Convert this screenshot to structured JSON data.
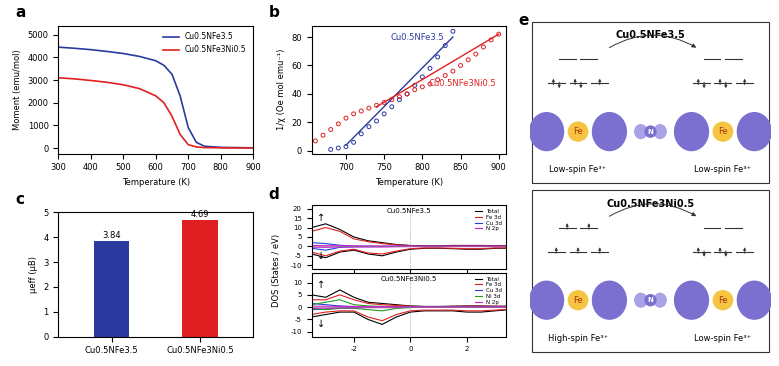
{
  "chart_data": [
    {
      "type": "line",
      "title": "a",
      "xlabel": "Temperature (K)",
      "ylabel": "Moment (emu/mol)",
      "x": [
        300,
        350,
        400,
        450,
        500,
        550,
        600,
        625,
        650,
        675,
        700,
        725,
        750,
        800,
        850,
        900
      ],
      "series": [
        {
          "name": "Cu0.5NFe3.5",
          "color": "#2b3a9e",
          "values": [
            4450,
            4400,
            4340,
            4260,
            4170,
            4040,
            3850,
            3650,
            3250,
            2300,
            900,
            250,
            80,
            30,
            20,
            10
          ]
        },
        {
          "name": "Cu0.5NFe3Ni0.5",
          "color": "#e02020",
          "values": [
            3100,
            3050,
            2980,
            2900,
            2790,
            2620,
            2300,
            2000,
            1400,
            600,
            150,
            50,
            20,
            10,
            5,
            5
          ]
        }
      ],
      "xlim": [
        300,
        900
      ],
      "xticks": [
        300,
        400,
        500,
        600,
        700,
        800,
        900
      ],
      "ylim": [
        -250,
        5400
      ],
      "yticks": [
        0,
        1000,
        2000,
        3000,
        4000,
        5000
      ],
      "legend": "upper right"
    },
    {
      "type": "scatter",
      "title": "b",
      "xlabel": "Temperature (K)",
      "ylabel": "1/χ (Oe mol emu⁻¹)",
      "series": [
        {
          "name": "Cu0.5NFe3.5",
          "color": "#2b3a9e",
          "marker": "circle",
          "x": [
            680,
            690,
            700,
            710,
            720,
            730,
            740,
            750,
            760,
            770,
            780,
            790,
            800,
            810,
            820,
            830,
            840
          ],
          "values": [
            1,
            2,
            3,
            6,
            12,
            17,
            21,
            26,
            31,
            36,
            40,
            46,
            52,
            58,
            66,
            74,
            84
          ],
          "fit_x": [
            700,
            840
          ],
          "fit_values": [
            4,
            80
          ]
        },
        {
          "name": "Cu0.5NFe3Ni0.5",
          "color": "#e02020",
          "marker": "circle",
          "x": [
            660,
            670,
            680,
            690,
            700,
            710,
            720,
            730,
            740,
            750,
            760,
            770,
            780,
            790,
            800,
            810,
            820,
            830,
            840,
            850,
            860,
            870,
            880,
            890,
            900
          ],
          "values": [
            7,
            11,
            15,
            19,
            23,
            26,
            28,
            30,
            32,
            34,
            36,
            38,
            40,
            43,
            45,
            47,
            50,
            53,
            56,
            60,
            64,
            68,
            73,
            78,
            82
          ],
          "fit_x": [
            740,
            900
          ],
          "fit_values": [
            31,
            82
          ]
        }
      ],
      "xlim": [
        655,
        910
      ],
      "xticks": [
        700,
        750,
        800,
        850,
        900
      ],
      "ylim": [
        -2,
        88
      ],
      "yticks": [
        0,
        20,
        40,
        60,
        80
      ]
    },
    {
      "type": "bar",
      "title": "c",
      "ylabel": "μeff (μB)",
      "categories": [
        "Cu0.5NFe3.5",
        "Cu0.5NFe3Ni0.5"
      ],
      "values": [
        3.84,
        4.69
      ],
      "colors": [
        "#2b3a9e",
        "#e02020"
      ],
      "ylim": [
        0,
        5
      ],
      "yticks": [
        0,
        1,
        2,
        3,
        4,
        5
      ],
      "data_labels": true
    },
    {
      "type": "line",
      "title": "d",
      "subtitle": "Cu0.5NFe3.5",
      "ylabel": "DOS (States / eV)",
      "spin_labels": [
        "↑",
        "↓"
      ],
      "tick_labels": "y",
      "legend": "upper right",
      "x": [
        -3.5,
        -3,
        -2.5,
        -2,
        -1.5,
        -1,
        -0.5,
        0,
        0.5,
        1,
        1.5,
        2,
        2.5,
        3,
        3.5
      ],
      "series": [
        {
          "name": "Total",
          "color": "#000000",
          "spin_up": [
            10,
            12,
            9,
            5,
            3,
            2,
            1,
            0.5,
            0.3,
            0.3,
            0.5,
            0.5,
            0.5,
            0.4,
            0.4
          ],
          "spin_down": [
            -4,
            -6,
            -3,
            -2,
            -4,
            -5,
            -3,
            -1.5,
            -1,
            -1,
            -1.2,
            -1.5,
            -1.5,
            -1,
            -1
          ]
        },
        {
          "name": "Fe 3d",
          "color": "#e02020",
          "spin_up": [
            8,
            10,
            8,
            4,
            2.5,
            1.5,
            0.8,
            0.4,
            0.2,
            0.2,
            0.3,
            0.3,
            0.3,
            0.3,
            0.3
          ],
          "spin_down": [
            -3,
            -5,
            -2.5,
            -1.5,
            -3.5,
            -4,
            -2.5,
            -1.2,
            -0.8,
            -0.8,
            -1,
            -1.2,
            -1.2,
            -0.8,
            -0.8
          ]
        },
        {
          "name": "Cu 3d",
          "color": "#2040e0",
          "spin_up": [
            2,
            1.5,
            0.6,
            0.2,
            0.1,
            0.1,
            0.05,
            0,
            0,
            0,
            0,
            0,
            0,
            0,
            0
          ],
          "spin_down": [
            -1,
            -2,
            -0.5,
            -0.2,
            -0.1,
            -0.1,
            0,
            0,
            0,
            0,
            0,
            0,
            0,
            0,
            0
          ]
        },
        {
          "name": "N 2p",
          "color": "#d020d0",
          "spin_up": [
            0.5,
            0.4,
            0.3,
            0.3,
            0.2,
            0.2,
            0.2,
            0.1,
            0.1,
            0.1,
            0.1,
            0.1,
            0.1,
            0.1,
            0.1
          ],
          "spin_down": [
            -0.4,
            -0.5,
            -0.3,
            -0.3,
            -0.3,
            -0.3,
            -0.2,
            -0.1,
            -0.1,
            -0.1,
            -0.1,
            -0.1,
            -0.1,
            -0.1,
            -0.1
          ]
        }
      ],
      "xlim": [
        -3.5,
        3.4
      ],
      "xticks": [
        -2,
        0,
        2
      ],
      "ylim": [
        -12,
        22
      ],
      "yticks": [
        -10,
        -5,
        0,
        5,
        10,
        15,
        20
      ]
    },
    {
      "type": "line",
      "subtitle": "Cu0.5NFe3Ni0.5",
      "spin_labels": [
        "↑",
        "↓"
      ],
      "legend": "upper right",
      "x": [
        -3.5,
        -3,
        -2.5,
        -2,
        -1.5,
        -1,
        -0.5,
        0,
        0.5,
        1,
        1.5,
        2,
        2.5,
        3,
        3.5
      ],
      "series": [
        {
          "name": "Total",
          "color": "#000000",
          "spin_up": [
            5,
            4,
            7,
            4,
            2,
            1.5,
            1,
            0.5,
            0.3,
            0.3,
            0.4,
            0.5,
            0.5,
            0.4,
            0.4
          ],
          "spin_down": [
            -4,
            -3,
            -2,
            -2,
            -5,
            -7,
            -4,
            -2,
            -1.5,
            -1.5,
            -1.5,
            -2,
            -2,
            -1.5,
            -1
          ]
        },
        {
          "name": "Fe 3d",
          "color": "#e02020",
          "spin_up": [
            3,
            3,
            5,
            3,
            1.5,
            1,
            0.7,
            0.4,
            0.2,
            0.2,
            0.3,
            0.4,
            0.4,
            0.3,
            0.3
          ],
          "spin_down": [
            -3,
            -2,
            -1.5,
            -1.5,
            -4,
            -5.5,
            -3,
            -1.5,
            -1.2,
            -1.2,
            -1.2,
            -1.5,
            -1.5,
            -1.2,
            -0.8
          ]
        },
        {
          "name": "Cu 3d",
          "color": "#2040e0",
          "spin_up": [
            1.5,
            1,
            0.5,
            0.2,
            0.1,
            0.1,
            0,
            0,
            0,
            0,
            0,
            0,
            0,
            0,
            0
          ],
          "spin_down": [
            -1,
            -0.8,
            -0.3,
            -0.2,
            -0.1,
            -0.1,
            0,
            0,
            0,
            0,
            0,
            0,
            0,
            0,
            0
          ]
        },
        {
          "name": "Ni 3d",
          "color": "#20a020",
          "spin_up": [
            1,
            2,
            3,
            1,
            0.5,
            0.3,
            0.2,
            0.1,
            0,
            0,
            0,
            0,
            0,
            0,
            0
          ],
          "spin_down": [
            -0.5,
            -1,
            -0.5,
            -0.5,
            -1,
            -1.5,
            -0.5,
            -0.2,
            0,
            0,
            0,
            0,
            0,
            0,
            0
          ]
        },
        {
          "name": "N 2p",
          "color": "#d020d0",
          "spin_up": [
            0.4,
            0.4,
            0.3,
            0.3,
            0.2,
            0.2,
            0.2,
            0.1,
            0.1,
            0.1,
            0.1,
            0.1,
            0.1,
            0.1,
            0.1
          ],
          "spin_down": [
            -0.4,
            -0.4,
            -0.3,
            -0.3,
            -0.2,
            -0.2,
            -0.2,
            -0.1,
            -0.1,
            -0.1,
            -0.1,
            -0.1,
            -0.1,
            -0.1,
            -0.1
          ]
        }
      ],
      "xlim": [
        -3.5,
        3.4
      ],
      "xticks": [
        -2,
        0,
        2
      ],
      "ylim": [
        -12,
        14
      ],
      "yticks": [
        -10,
        -5,
        0,
        5,
        10
      ]
    }
  ],
  "diagram": {
    "title": "e",
    "metal": "Fe",
    "ligand": "N",
    "boxes": [
      {
        "title": "Cu0.5NFe3.5",
        "left_label": "Low-spin Fe³⁺",
        "right_label": "Low-spin Fe³⁺",
        "left_spin": "low",
        "right_spin": "low"
      },
      {
        "title": "Cu0.5NFe3Ni0.5",
        "left_label": "High-spin Fe³⁺",
        "right_label": "Low-spin Fe³⁺",
        "left_spin": "high",
        "right_spin": "low"
      }
    ]
  }
}
